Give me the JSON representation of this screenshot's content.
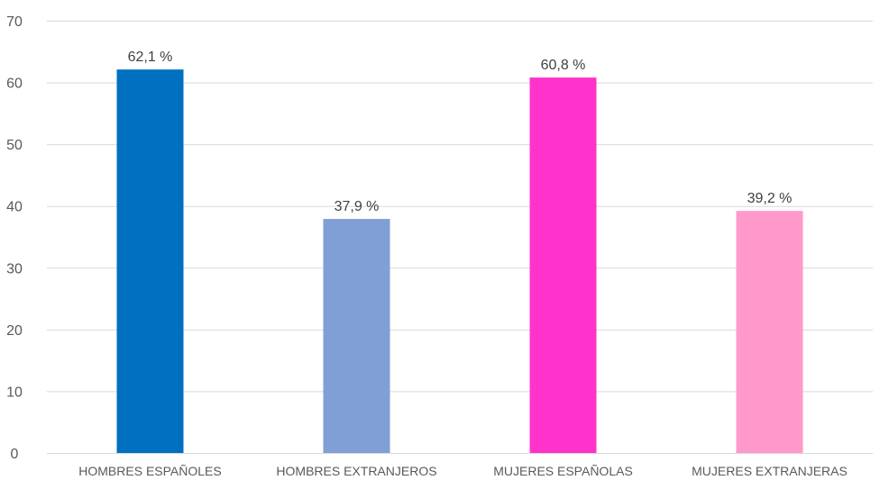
{
  "chart_data": {
    "type": "bar",
    "categories": [
      "HOMBRES ESPAÑOLES",
      "HOMBRES EXTRANJEROS",
      "MUJERES ESPAÑOLAS",
      "MUJERES EXTRANJERAS"
    ],
    "values": [
      62.1,
      37.9,
      60.8,
      39.2
    ],
    "data_labels": [
      "62,1 %",
      "37,9 %",
      "60,8 %",
      "39,2 %"
    ],
    "colors": [
      "#0070c0",
      "#7f9fd5",
      "#ff33cc",
      "#ff99cc"
    ],
    "title": "",
    "xlabel": "",
    "ylabel": "",
    "ylim": [
      0,
      70
    ],
    "yticks": [
      0,
      10,
      20,
      30,
      40,
      50,
      60,
      70
    ],
    "grid": true,
    "legend": "none"
  }
}
